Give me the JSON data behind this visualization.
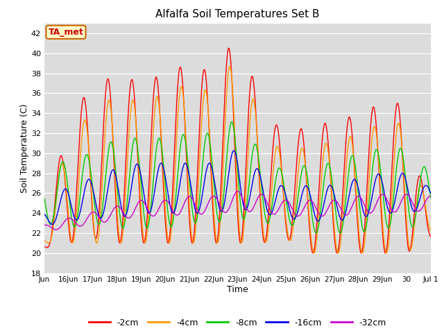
{
  "title": "Alfalfa Soil Temperatures Set B",
  "xlabel": "Time",
  "ylabel": "Soil Temperature (C)",
  "ylim": [
    18,
    43
  ],
  "yticks": [
    18,
    20,
    22,
    24,
    26,
    28,
    30,
    32,
    34,
    36,
    38,
    40,
    42
  ],
  "bg_color": "#dcdcdc",
  "fig_color": "#ffffff",
  "annotation_text": "TA_met",
  "annotation_color": "#cc0000",
  "annotation_bg": "#ffffcc",
  "annotation_border": "#cc6600",
  "line_colors": {
    "-2cm": "#ff0000",
    "-4cm": "#ff9900",
    "-8cm": "#00cc00",
    "-16cm": "#0000ee",
    "-32cm": "#cc00cc"
  },
  "legend_order": [
    "-2cm",
    "-4cm",
    "-8cm",
    "-16cm",
    "-32cm"
  ],
  "tick_labels": [
    "Jun",
    "16Jun",
    "17Jun",
    "18Jun",
    "19Jun",
    "20Jun",
    "21Jun",
    "22Jun",
    "23Jun",
    "24Jun",
    "25Jun",
    "26Jun",
    "27Jun",
    "28Jun",
    "29Jun",
    "30",
    "Jul 1"
  ]
}
